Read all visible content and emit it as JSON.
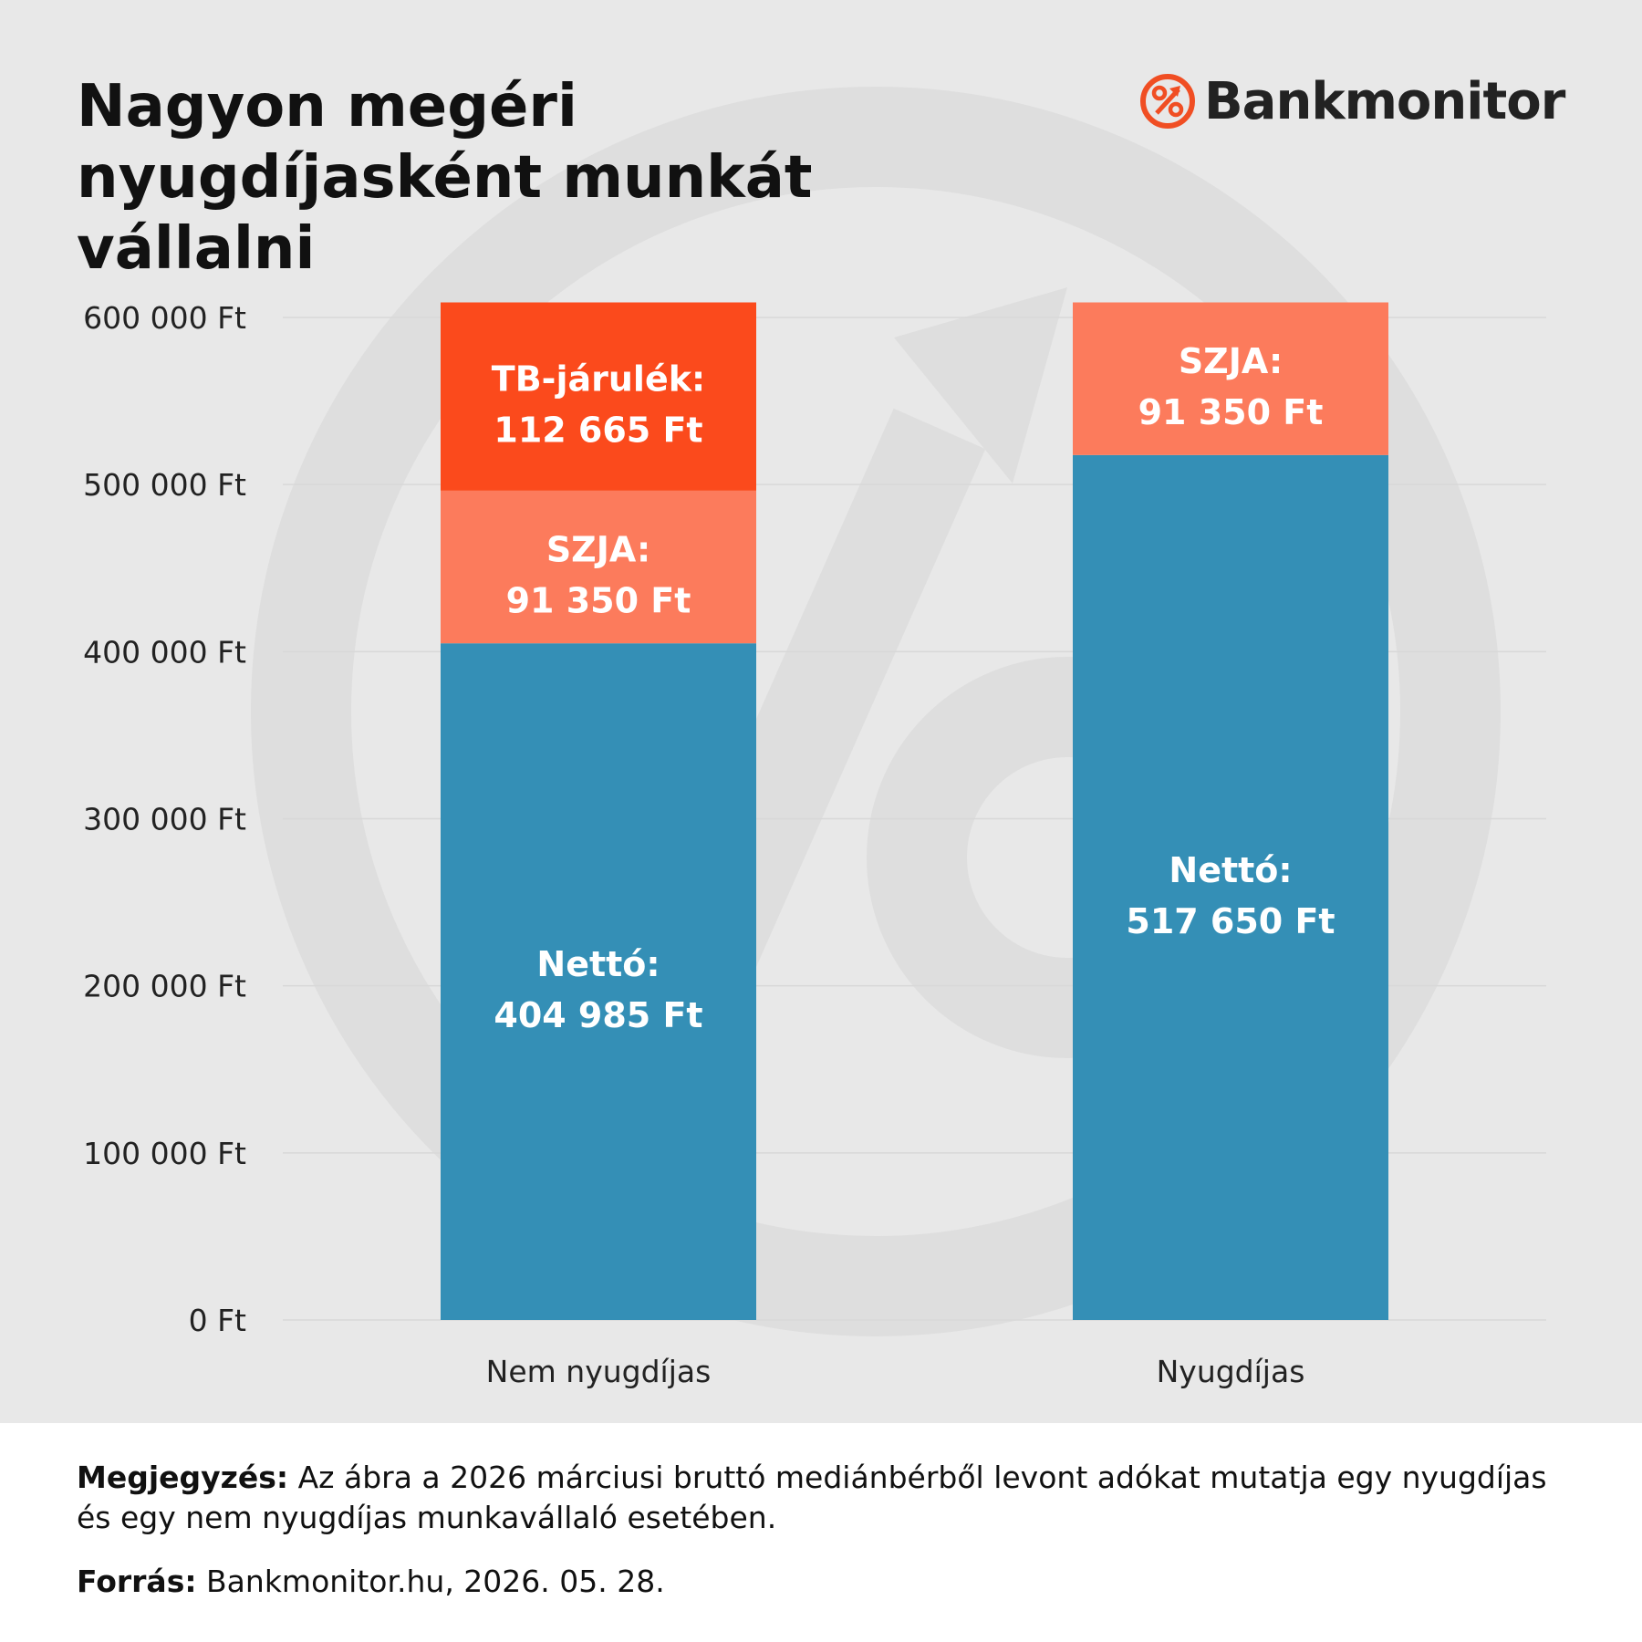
{
  "title": "Nagyon megéri nyugdíjasként munkát vállalni",
  "logo": {
    "text": "Bankmonitor",
    "icon": "percent-icon"
  },
  "colors": {
    "netto": "#348fb6",
    "szja": "#fc7b5c",
    "tb": "#fb4a1c",
    "brand": "#f04e23",
    "background": "#e8e8e8",
    "grid": "#d8d8d8"
  },
  "chart_data": {
    "type": "bar",
    "stacked": true,
    "categories": [
      "Nem nyugdíjas",
      "Nyugdíjas"
    ],
    "series": [
      {
        "key": "netto",
        "label": "Nettó:",
        "values": [
          404985,
          517650
        ],
        "value_labels": [
          "404 985 Ft",
          "517 650 Ft"
        ]
      },
      {
        "key": "szja",
        "label": "SZJA:",
        "values": [
          91350,
          91350
        ],
        "value_labels": [
          "91 350 Ft",
          "91 350 Ft"
        ]
      },
      {
        "key": "tb",
        "label": "TB-járulék:",
        "values": [
          112665,
          0
        ],
        "value_labels": [
          "112 665 Ft",
          ""
        ]
      }
    ],
    "ylim": [
      0,
      600000
    ],
    "yticks": [
      0,
      100000,
      200000,
      300000,
      400000,
      500000,
      600000
    ],
    "ytick_labels": [
      "0 Ft",
      "100 000 Ft",
      "200 000 Ft",
      "300 000 Ft",
      "400 000 Ft",
      "500 000 Ft",
      "600 000 Ft"
    ],
    "grid": true
  },
  "notes": {
    "note_label": "Megjegyzés:",
    "note_text": " Az ábra a 2026 márciusi bruttó mediánbérből levont adókat mutatja egy nyugdíjas és egy nem nyugdíjas munkavállaló esetében.",
    "source_label": "Forrás:",
    "source_text": " Bankmonitor.hu, 2026. 05. 28."
  }
}
